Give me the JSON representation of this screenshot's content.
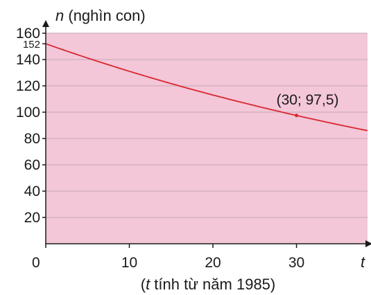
{
  "chart_data": {
    "type": "line",
    "ylabel_var": "n",
    "ylabel_unit": " (nghìn con)",
    "xlabel_var": "t",
    "xnote_open": "(",
    "xnote_var": "t",
    "xnote_rest": " tính từ năm 1985)",
    "origin_label": "0",
    "xlim": [
      0,
      38.5
    ],
    "ylim": [
      0,
      160
    ],
    "x_ticks": [
      10,
      20,
      30
    ],
    "y_ticks": [
      20,
      40,
      60,
      80,
      100,
      120,
      140,
      160
    ],
    "y_extra_tick": 152,
    "grid": true,
    "background": "#f3c6d8",
    "grid_color": "#cfaebc",
    "line_color": "#d9262e",
    "series": [
      {
        "x": [
          0,
          5,
          10,
          15,
          20,
          25,
          30,
          35,
          38.5
        ],
        "y": [
          152,
          138.8,
          126.7,
          115.6,
          105.6,
          96.4,
          97.5,
          88.0,
          85.0
        ]
      }
    ],
    "highlight_point": {
      "x": 30,
      "y": 97.5,
      "label": "(30; 97,5)"
    }
  }
}
